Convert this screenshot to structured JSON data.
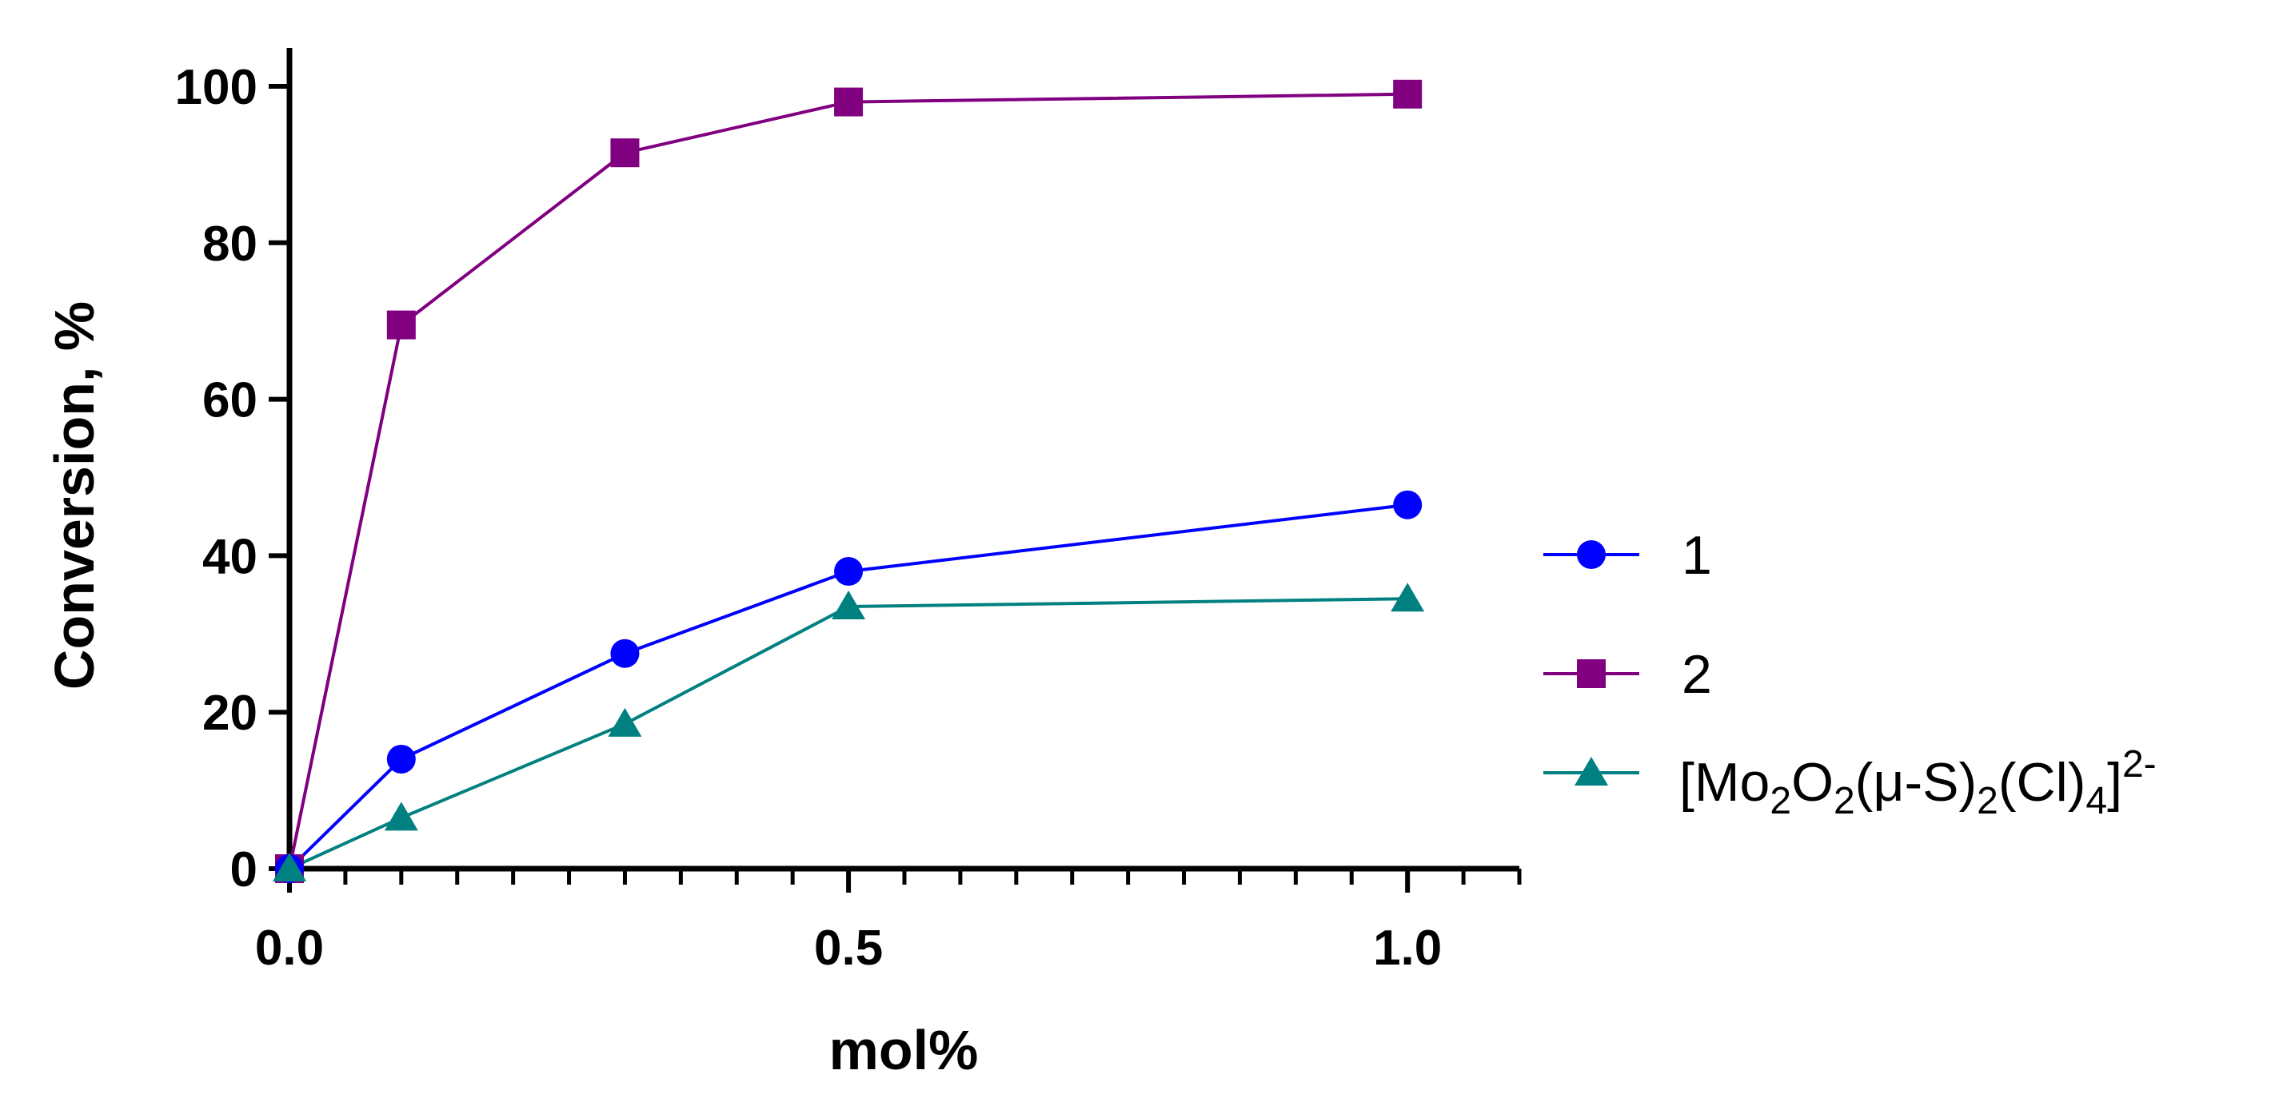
{
  "chart_data": {
    "type": "line",
    "title": "",
    "xlabel": "mol%",
    "ylabel": "Conversion, %",
    "xlim": [
      0,
      1.1
    ],
    "ylim": [
      0,
      100
    ],
    "x_ticks": [
      0.0,
      0.5,
      1.0
    ],
    "x_tick_labels": [
      "0.0",
      "0.5",
      "1.0"
    ],
    "x_minor_step": 0.05,
    "y_ticks": [
      0,
      20,
      40,
      60,
      80,
      100
    ],
    "y_tick_labels": [
      "0",
      "20",
      "40",
      "60",
      "80",
      "100"
    ],
    "grid": false,
    "legend_position": "right",
    "series": [
      {
        "name": "1",
        "color": "#0000ff",
        "marker": "circle",
        "x": [
          0,
          0.1,
          0.3,
          0.5,
          1.0
        ],
        "y": [
          0,
          14,
          27.5,
          38,
          46.5
        ]
      },
      {
        "name": "2",
        "color": "#800080",
        "marker": "square",
        "x": [
          0,
          0.1,
          0.3,
          0.5,
          1.0
        ],
        "y": [
          0,
          69.5,
          91.5,
          98,
          99
        ]
      },
      {
        "name": "[Mo2O2(μ-S)2(Cl)4]2-",
        "color": "#008080",
        "marker": "triangle",
        "x": [
          0,
          0.1,
          0.3,
          0.5,
          1.0
        ],
        "y": [
          0,
          6.5,
          18.5,
          33.5,
          34.5
        ],
        "legend_parts": {
          "open": "[Mo",
          "sub1": "2",
          "o": "O",
          "sub2": "2",
          "mu": "(μ-S)",
          "sub3": "2",
          "cl": "(Cl)",
          "sub4": "4",
          "close": "]",
          "sup": "2-"
        }
      }
    ]
  }
}
